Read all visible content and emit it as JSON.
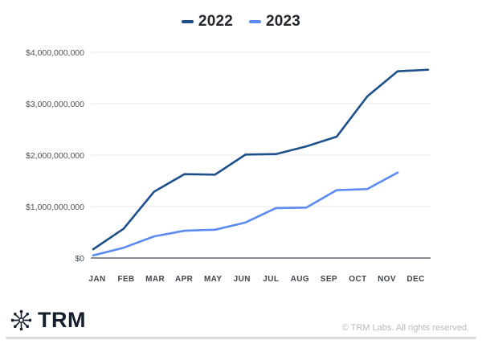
{
  "chart_data": {
    "type": "line",
    "title": "",
    "categories": [
      "JAN",
      "FEB",
      "MAR",
      "APR",
      "MAY",
      "JUN",
      "JUL",
      "AUG",
      "SEP",
      "OCT",
      "NOV",
      "DEC"
    ],
    "series": [
      {
        "name": "2022",
        "color": "#1d4f8a",
        "values": [
          170000000,
          570000000,
          1290000000,
          1630000000,
          1620000000,
          2010000000,
          2020000000,
          2170000000,
          2360000000,
          3140000000,
          3630000000,
          3660000000
        ]
      },
      {
        "name": "2023",
        "color": "#5b8bf0",
        "values": [
          50000000,
          200000000,
          420000000,
          530000000,
          550000000,
          690000000,
          970000000,
          980000000,
          1320000000,
          1340000000,
          1660000000
        ]
      }
    ],
    "ylim": [
      0,
      4000000000
    ],
    "y_ticks": [
      {
        "value": 0,
        "label": "$0"
      },
      {
        "value": 1000000000,
        "label": "$1,000,000,000"
      },
      {
        "value": 2000000000,
        "label": "$2,000,000,000"
      },
      {
        "value": 3000000000,
        "label": "$3,000,000,000"
      },
      {
        "value": 4000000000,
        "label": "$4,000,000,000"
      }
    ],
    "grid": true,
    "grid_color": "#e8e9eb",
    "axis_color": "#63686e",
    "legend_position": "top"
  },
  "footer": {
    "brand": "TRM",
    "copyright": "© TRM Labs. All rights reserved."
  },
  "colors": {
    "brand_navy": "#16202e",
    "muted_text": "#b7babd"
  }
}
